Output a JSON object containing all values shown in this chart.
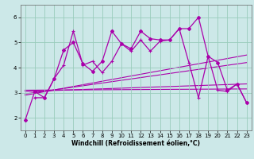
{
  "bg_color": "#cce8e8",
  "line_color": "#aa00aa",
  "grid_color": "#99ccbb",
  "xlabel": "Windchill (Refroidissement éolien,°C)",
  "xlim": [
    -0.5,
    23.5
  ],
  "ylim": [
    1.5,
    6.5
  ],
  "yticks": [
    2,
    3,
    4,
    5,
    6
  ],
  "xticks": [
    0,
    1,
    2,
    3,
    4,
    5,
    6,
    7,
    8,
    9,
    10,
    11,
    12,
    13,
    14,
    15,
    16,
    17,
    18,
    19,
    20,
    21,
    22,
    23
  ],
  "series1_x": [
    0,
    1,
    2,
    3,
    4,
    5,
    6,
    7,
    8,
    9,
    10,
    11,
    12,
    13,
    14,
    15,
    16,
    17,
    18,
    19,
    20,
    21,
    22,
    23
  ],
  "series1_y": [
    1.9,
    3.05,
    2.8,
    3.55,
    4.7,
    5.0,
    4.15,
    3.85,
    4.25,
    5.45,
    4.95,
    4.75,
    5.45,
    5.15,
    5.1,
    5.1,
    5.55,
    5.55,
    6.0,
    4.45,
    4.2,
    3.1,
    3.35,
    2.6
  ],
  "series2_x": [
    1,
    2,
    3,
    4,
    5,
    6,
    7,
    8,
    9,
    10,
    11,
    12,
    13,
    14,
    15,
    16,
    17,
    18,
    19,
    20,
    21,
    22,
    23
  ],
  "series2_y": [
    2.8,
    2.8,
    3.55,
    4.1,
    5.45,
    4.1,
    4.25,
    3.8,
    4.25,
    4.95,
    4.65,
    5.1,
    4.65,
    5.05,
    5.1,
    5.55,
    4.2,
    2.8,
    4.45,
    3.1,
    3.05,
    3.35,
    2.6
  ],
  "regression_lines": [
    {
      "x0": 0,
      "y0": 2.9,
      "x1": 23,
      "y1": 4.5
    },
    {
      "x0": 0,
      "y0": 2.95,
      "x1": 23,
      "y1": 4.2
    },
    {
      "x0": 0,
      "y0": 3.05,
      "x1": 23,
      "y1": 3.35
    },
    {
      "x0": 0,
      "y0": 3.1,
      "x1": 23,
      "y1": 3.15
    }
  ]
}
